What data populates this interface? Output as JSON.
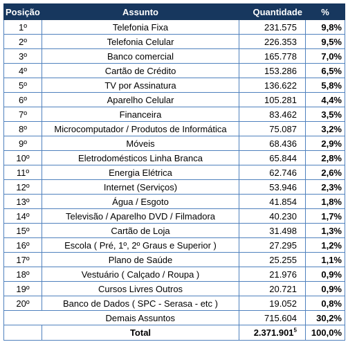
{
  "header": {
    "posicao": "Posição",
    "assunto": "Assunto",
    "quantidade": "Quantidade",
    "percent": "%"
  },
  "rows": [
    {
      "pos": "1º",
      "assunto": "Telefonia Fixa",
      "qtd": "231.575",
      "pct": "9,8%"
    },
    {
      "pos": "2º",
      "assunto": "Telefonia Celular",
      "qtd": "226.353",
      "pct": "9,5%"
    },
    {
      "pos": "3º",
      "assunto": "Banco comercial",
      "qtd": "165.778",
      "pct": "7,0%"
    },
    {
      "pos": "4º",
      "assunto": "Cartão de Crédito",
      "qtd": "153.286",
      "pct": "6,5%"
    },
    {
      "pos": "5º",
      "assunto": "TV por Assinatura",
      "qtd": "136.622",
      "pct": "5,8%"
    },
    {
      "pos": "6º",
      "assunto": "Aparelho Celular",
      "qtd": "105.281",
      "pct": "4,4%"
    },
    {
      "pos": "7º",
      "assunto": "Financeira",
      "qtd": "83.462",
      "pct": "3,5%"
    },
    {
      "pos": "8º",
      "assunto": "Microcomputador / Produtos de Informática",
      "qtd": "75.087",
      "pct": "3,2%"
    },
    {
      "pos": "9º",
      "assunto": "Móveis",
      "qtd": "68.436",
      "pct": "2,9%"
    },
    {
      "pos": "10º",
      "assunto": "Eletrodomésticos Linha Branca",
      "qtd": "65.844",
      "pct": "2,8%"
    },
    {
      "pos": "11º",
      "assunto": "Energia Elétrica",
      "qtd": "62.746",
      "pct": "2,6%"
    },
    {
      "pos": "12º",
      "assunto": "Internet (Serviços)",
      "qtd": "53.946",
      "pct": "2,3%"
    },
    {
      "pos": "13º",
      "assunto": "Água / Esgoto",
      "qtd": "41.854",
      "pct": "1,8%"
    },
    {
      "pos": "14º",
      "assunto": "Televisão / Aparelho DVD / Filmadora",
      "qtd": "40.230",
      "pct": "1,7%"
    },
    {
      "pos": "15º",
      "assunto": "Cartão de Loja",
      "qtd": "31.498",
      "pct": "1,3%"
    },
    {
      "pos": "16º",
      "assunto": "Escola ( Pré, 1º, 2º Graus e Superior )",
      "qtd": "27.295",
      "pct": "1,2%"
    },
    {
      "pos": "17º",
      "assunto": "Plano de Saúde",
      "qtd": "25.255",
      "pct": "1,1%"
    },
    {
      "pos": "18º",
      "assunto": "Vestuário ( Calçado / Roupa )",
      "qtd": "21.976",
      "pct": "0,9%"
    },
    {
      "pos": "19º",
      "assunto": "Cursos Livres Outros",
      "qtd": "20.721",
      "pct": "0,9%"
    },
    {
      "pos": "20º",
      "assunto": "Banco de Dados ( SPC - Serasa - etc )",
      "qtd": "19.052",
      "pct": "0,8%"
    }
  ],
  "demais": {
    "assunto": "Demais Assuntos",
    "qtd": "715.604",
    "pct": "30,2%"
  },
  "total": {
    "label": "Total",
    "qtd": "2.371.901",
    "footnote": "5",
    "pct": "100,0%"
  },
  "colors": {
    "header_bg": "#17375e",
    "header_text": "#ffffff",
    "border": "#4f81bd"
  }
}
